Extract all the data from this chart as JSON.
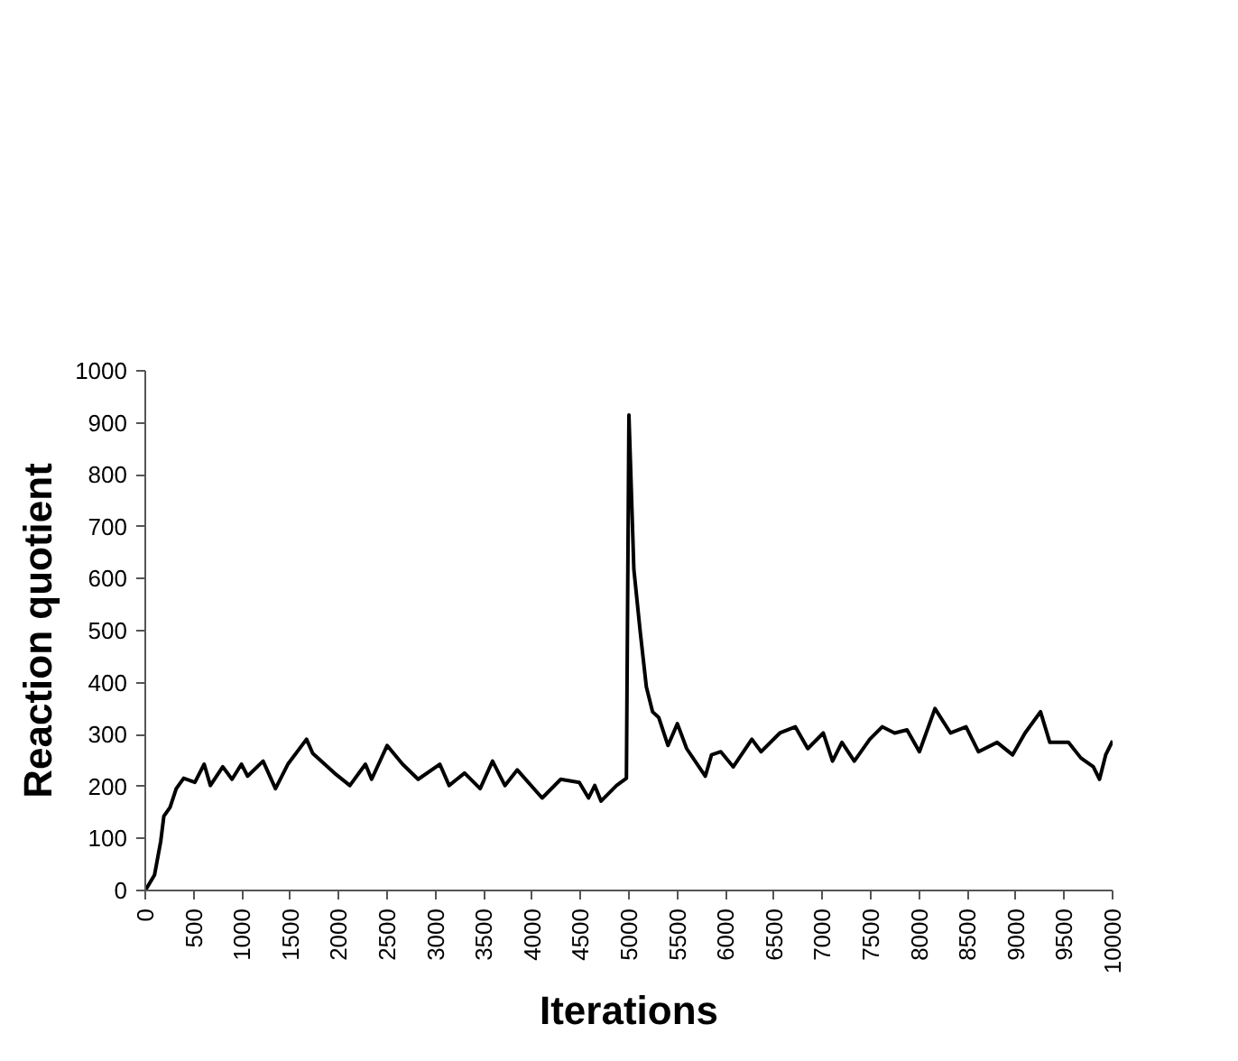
{
  "chart_data": {
    "type": "line",
    "xlabel": "Iterations",
    "ylabel": "Reaction quotient",
    "x": [
      0,
      96,
      160,
      192,
      256,
      320,
      397,
      513,
      609,
      673,
      801,
      897,
      994,
      1058,
      1218,
      1346,
      1474,
      1667,
      1731,
      1955,
      2115,
      2276,
      2340,
      2500,
      2660,
      2821,
      3045,
      3141,
      3301,
      3462,
      3590,
      3718,
      3846,
      4103,
      4295,
      4487,
      4583,
      4647,
      4712,
      4872,
      4974,
      5000,
      5051,
      5116,
      5180,
      5244,
      5308,
      5404,
      5501,
      5597,
      5790,
      5854,
      5950,
      6079,
      6271,
      6367,
      6560,
      6720,
      6849,
      7009,
      7105,
      7202,
      7330,
      7490,
      7618,
      7747,
      7875,
      8003,
      8164,
      8325,
      8485,
      8613,
      8806,
      8966,
      9095,
      9255,
      9351,
      9544,
      9672,
      9801,
      9865,
      9929,
      10000
    ],
    "series": [
      {
        "color": "#000000",
        "values": [
          0,
          30,
          95,
          143,
          160,
          196,
          216,
          208,
          243,
          202,
          238,
          214,
          243,
          220,
          249,
          196,
          243,
          291,
          264,
          226,
          202,
          243,
          214,
          279,
          243,
          214,
          243,
          202,
          226,
          196,
          249,
          202,
          232,
          178,
          214,
          208,
          178,
          202,
          172,
          202,
          216,
          915,
          618,
          499,
          392,
          344,
          333,
          279,
          321,
          273,
          220,
          261,
          267,
          238,
          291,
          267,
          303,
          315,
          273,
          303,
          249,
          285,
          249,
          291,
          315,
          303,
          309,
          267,
          350,
          303,
          315,
          267,
          285,
          261,
          303,
          344,
          285,
          285,
          255,
          238,
          214,
          261,
          288
        ]
      }
    ],
    "xlim": [
      0,
      10000
    ],
    "xticks": [
      0,
      500,
      1000,
      1500,
      2000,
      2500,
      3000,
      3500,
      4000,
      4500,
      5000,
      5500,
      6000,
      6500,
      7000,
      7500,
      8000,
      8500,
      9000,
      9500,
      10000
    ],
    "ylim": [
      0,
      1000
    ],
    "yticks": [
      0,
      100,
      200,
      300,
      400,
      500,
      600,
      700,
      800,
      900,
      1000
    ],
    "grid": false,
    "marker": "none",
    "line_style": "solid"
  }
}
